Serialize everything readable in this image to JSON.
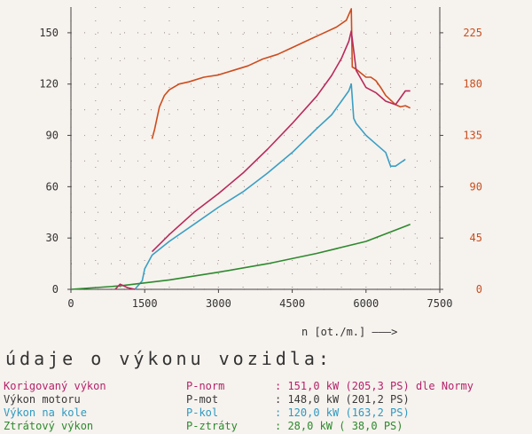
{
  "chart_data": {
    "type": "line",
    "title": "",
    "xlabel": "n [ot./m.] ———>",
    "ylabel": "",
    "xlim": [
      0,
      7500
    ],
    "ylim_left": [
      0,
      165
    ],
    "ylim_right": [
      0,
      247.5
    ],
    "x_ticks": [
      "0",
      "1500",
      "3000",
      "4500",
      "6000",
      "7500"
    ],
    "y_left_ticks": [
      "0",
      "30",
      "60",
      "90",
      "120",
      "150"
    ],
    "y_right_ticks": [
      "0",
      "45",
      "90",
      "135",
      "180",
      "225"
    ],
    "grid": "dotted",
    "series": [
      {
        "name": "",
        "axis": "right",
        "color": "#cc4d1e",
        "x": [
          1650,
          1700,
          1800,
          1900,
          2000,
          2200,
          2400,
          2700,
          3000,
          3300,
          3600,
          3900,
          4200,
          4500,
          4800,
          5100,
          5400,
          5600,
          5700,
          5720,
          5800,
          6000,
          6100,
          6200,
          6300,
          6400,
          6500,
          6600,
          6700,
          6800,
          6900
        ],
        "y": [
          132,
          140,
          160,
          170,
          175,
          180,
          182,
          186,
          188,
          192,
          196,
          202,
          206,
          212,
          218,
          224,
          230,
          236,
          246,
          195,
          193,
          186,
          186,
          183,
          177,
          170,
          166,
          162,
          160,
          161,
          159
        ]
      },
      {
        "name": "P-norm",
        "axis": "left",
        "color": "#b82a5c",
        "x": [
          1650,
          2000,
          2500,
          3000,
          3500,
          4000,
          4500,
          5000,
          5300,
          5500,
          5650,
          5700,
          5800,
          6000,
          6200,
          6400,
          6600,
          6800,
          6900
        ],
        "y": [
          22,
          32,
          45,
          56,
          68,
          82,
          97,
          113,
          125,
          135,
          145,
          151,
          128,
          118,
          115,
          110,
          108,
          116,
          116
        ]
      },
      {
        "name": "P-kol",
        "axis": "left",
        "color": "#3a9fc4",
        "x": [
          1300,
          1450,
          1500,
          1650,
          2000,
          2500,
          3000,
          3500,
          4000,
          4500,
          5000,
          5300,
          5500,
          5650,
          5700,
          5750,
          5800,
          6000,
          6200,
          6400,
          6500,
          6600,
          6700,
          6800
        ],
        "y": [
          0,
          5,
          12,
          20,
          28,
          38,
          48,
          57,
          68,
          80,
          94,
          102,
          110,
          116,
          120,
          100,
          97,
          90,
          85,
          80,
          72,
          72,
          74,
          76
        ]
      },
      {
        "name": "P-ztráty",
        "axis": "left",
        "color": "#2d8a2d",
        "x": [
          0,
          1000,
          2000,
          3000,
          4000,
          5000,
          6000,
          6900
        ],
        "y": [
          0,
          2,
          5.5,
          10,
          15,
          21,
          28,
          38
        ]
      },
      {
        "name": "",
        "axis": "left",
        "color": "#b82a5c",
        "x": [
          900,
          1000,
          1150,
          1300
        ],
        "y": [
          0,
          3,
          1,
          0
        ]
      }
    ]
  },
  "summary": {
    "heading": "údaje o výkonu vozidla:",
    "rows": [
      {
        "name": "Korigovaný výkon",
        "symbol": "P-norm",
        "value": ": 151,0 kW (205,3 PS) dle Normy",
        "color": "#b4236a"
      },
      {
        "name": "Výkon motoru",
        "symbol": "P-mot",
        "value": ": 148,0 kW (201,2 PS)",
        "color": "#3a3a3a"
      },
      {
        "name": "Výkon na kole",
        "symbol": "P-kol",
        "value": ": 120,0 kW (163,2 PS)",
        "color": "#2e9ac2"
      },
      {
        "name": "Ztrátový výkon",
        "symbol": "P-ztráty",
        "value": ": 28,0 kW ( 38,0 PS)",
        "color": "#2d8a2d"
      }
    ]
  },
  "colors": {
    "left_axis": "#333333",
    "right_axis": "#c84f1e",
    "grid": "#a99a9a"
  }
}
